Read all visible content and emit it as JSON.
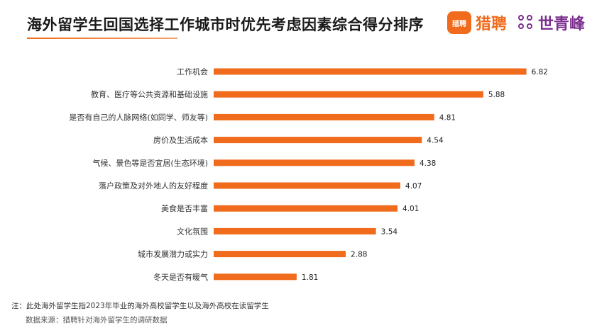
{
  "title": "海外留学生回国选择工作城市时优先考虑因素综合得分排序",
  "logos": {
    "liepin_icon_text": "猎聘",
    "liepin_name": "猎聘",
    "shiqingfeng_name": "世青峰"
  },
  "colors": {
    "bar": "#f06b1c",
    "accent_liepin": "#f06b1c",
    "accent_sqf": "#7a2e8e"
  },
  "chart_data": {
    "type": "bar",
    "orientation": "horizontal",
    "categories": [
      "工作机会",
      "教育、医疗等公共资源和基础设施",
      "是否有自己的人脉网络(如同学、师友等)",
      "房价及生活成本",
      "气候、景色等是否宜居(生态环境)",
      "落户政策及对外地人的友好程度",
      "美食是否丰富",
      "文化氛围",
      "城市发展潜力或实力",
      "冬天是否有暖气"
    ],
    "values": [
      6.82,
      5.88,
      4.81,
      4.54,
      4.38,
      4.07,
      4.01,
      3.54,
      2.88,
      1.81
    ],
    "xlim": [
      0,
      7
    ],
    "grid": false,
    "data_labels": true
  },
  "footnote": "注：此处海外留学生指2023年毕业的海外高校留学生以及海外高校在读留学生",
  "source": "数据来源：猎聘针对海外留学生的调研数据"
}
